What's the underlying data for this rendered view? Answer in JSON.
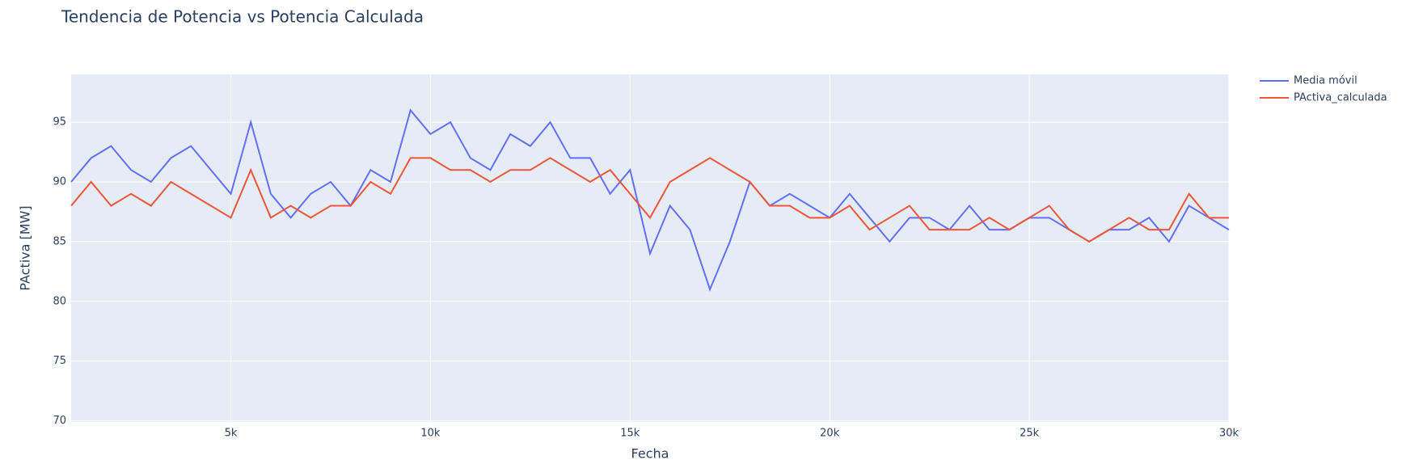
{
  "chart_data": {
    "type": "line",
    "title": "Tendencia de Potencia vs Potencia Calculada",
    "x_label": "Fecha",
    "y_label": "PActiva [MW]",
    "x": [
      1000,
      1500,
      2000,
      2500,
      3000,
      3500,
      4000,
      4500,
      5000,
      5500,
      6000,
      6500,
      7000,
      7500,
      8000,
      8500,
      9000,
      9500,
      10000,
      10500,
      11000,
      11500,
      12000,
      12500,
      13000,
      13500,
      14000,
      14500,
      15000,
      15500,
      16000,
      16500,
      17000,
      17500,
      18000,
      18500,
      19000,
      19500,
      20000,
      20500,
      21000,
      21500,
      22000,
      22500,
      23000,
      23500,
      24000,
      24500,
      25000,
      25500,
      26000,
      26500,
      27000,
      27500,
      28000,
      28500,
      29000,
      29500,
      30000
    ],
    "series": [
      {
        "name": "Media móvil",
        "color": "#636efa",
        "values": [
          90,
          92,
          93,
          91,
          90,
          92,
          93,
          91,
          89,
          95,
          89,
          87,
          89,
          90,
          88,
          91,
          90,
          96,
          94,
          95,
          92,
          91,
          94,
          93,
          95,
          92,
          92,
          89,
          91,
          84,
          88,
          86,
          81,
          85,
          90,
          88,
          89,
          88,
          87,
          89,
          87,
          85,
          87,
          87,
          86,
          88,
          86,
          86,
          87,
          87,
          86,
          85,
          86,
          86,
          87,
          85,
          88,
          87,
          86
        ]
      },
      {
        "name": "PActiva_calculada",
        "color": "#EF553B",
        "values": [
          88,
          90,
          88,
          89,
          88,
          90,
          89,
          88,
          87,
          91,
          87,
          88,
          87,
          88,
          88,
          90,
          89,
          92,
          92,
          91,
          91,
          90,
          91,
          91,
          92,
          91,
          90,
          91,
          89,
          87,
          90,
          91,
          92,
          91,
          90,
          88,
          88,
          87,
          87,
          88,
          86,
          87,
          88,
          86,
          86,
          86,
          87,
          86,
          87,
          88,
          86,
          85,
          86,
          87,
          86,
          86,
          89,
          87,
          87
        ]
      }
    ],
    "xlim": [
      1000,
      30000
    ],
    "xticks": [
      {
        "value": 5000,
        "label": "5k"
      },
      {
        "value": 10000,
        "label": "10k"
      },
      {
        "value": 15000,
        "label": "15k"
      },
      {
        "value": 20000,
        "label": "20k"
      },
      {
        "value": 25000,
        "label": "25k"
      },
      {
        "value": 30000,
        "label": "30k"
      }
    ],
    "ylim": [
      69.9,
      99
    ],
    "yticks": [
      70,
      75,
      80,
      85,
      90,
      95
    ],
    "grid": true,
    "legend": "right"
  }
}
